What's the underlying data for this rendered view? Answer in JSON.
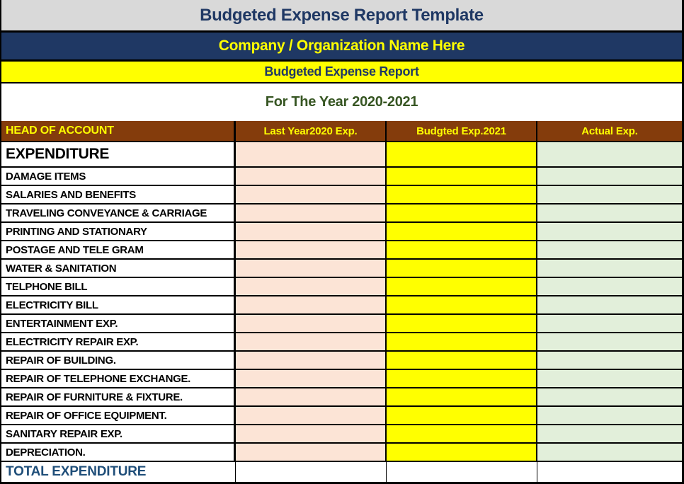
{
  "header": {
    "template_title": "Budgeted Expense Report Template",
    "company_name": "Company / Organization Name Here",
    "report_title": "Budgeted Expense Report",
    "period": "For The Year 2020-2021"
  },
  "table": {
    "columns": [
      "HEAD OF ACCOUNT",
      "Last Year2020 Exp.",
      "Budgted Exp.2021",
      "Actual Exp."
    ],
    "section_row": {
      "label": "EXPENDITURE",
      "last_year": "",
      "budgeted": "",
      "actual": ""
    },
    "rows": [
      {
        "label": "DAMAGE ITEMS",
        "last_year": "",
        "budgeted": "",
        "actual": ""
      },
      {
        "label": "SALARIES AND BENEFITS",
        "last_year": "",
        "budgeted": "",
        "actual": ""
      },
      {
        "label": "TRAVELING CONVEYANCE & CARRIAGE",
        "last_year": "",
        "budgeted": "",
        "actual": ""
      },
      {
        "label": "PRINTING AND STATIONARY",
        "last_year": "",
        "budgeted": "",
        "actual": ""
      },
      {
        "label": "POSTAGE AND TELE GRAM",
        "last_year": "",
        "budgeted": "",
        "actual": ""
      },
      {
        "label": "WATER & SANITATION",
        "last_year": "",
        "budgeted": "",
        "actual": ""
      },
      {
        "label": "TELPHONE BILL",
        "last_year": "",
        "budgeted": "",
        "actual": ""
      },
      {
        "label": "ELECTRICITY BILL",
        "last_year": "",
        "budgeted": "",
        "actual": ""
      },
      {
        "label": "ENTERTAINMENT EXP.",
        "last_year": "",
        "budgeted": "",
        "actual": ""
      },
      {
        "label": "ELECTRICITY REPAIR EXP.",
        "last_year": "",
        "budgeted": "",
        "actual": ""
      },
      {
        "label": "REPAIR OF BUILDING.",
        "last_year": "",
        "budgeted": "",
        "actual": ""
      },
      {
        "label": "REPAIR OF TELEPHONE EXCHANGE.",
        "last_year": "",
        "budgeted": "",
        "actual": ""
      },
      {
        "label": "REPAIR OF FURNITURE & FIXTURE.",
        "last_year": "",
        "budgeted": "",
        "actual": ""
      },
      {
        "label": "REPAIR OF OFFICE EQUIPMENT.",
        "last_year": "",
        "budgeted": "",
        "actual": ""
      },
      {
        "label": "SANITARY REPAIR EXP.",
        "last_year": "",
        "budgeted": "",
        "actual": ""
      },
      {
        "label": "DEPRECIATION.",
        "last_year": "",
        "budgeted": "",
        "actual": ""
      }
    ],
    "total_row": {
      "label": "TOTAL EXPENDITURE",
      "last_year": "",
      "budgeted": "",
      "actual": ""
    }
  },
  "colors": {
    "banner_gray": "#d9d9d9",
    "navy": "#1f3864",
    "yellow": "#ffff00",
    "header_brown": "#843c0c",
    "cell_pink": "#fce4d6",
    "cell_green": "#e2efda",
    "period_green": "#375623",
    "total_blue": "#1f4e79"
  }
}
